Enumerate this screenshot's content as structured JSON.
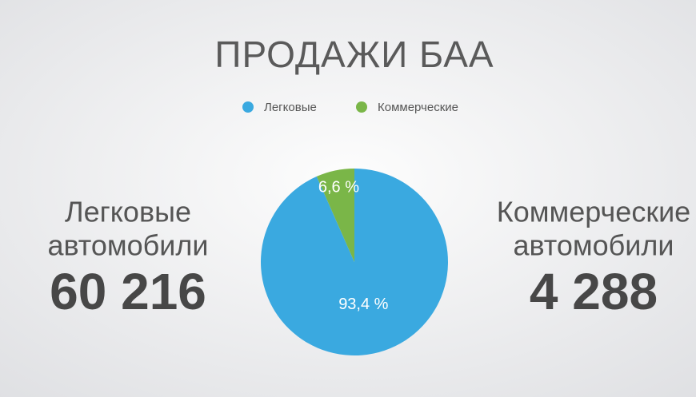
{
  "chart_data": {
    "type": "pie",
    "title": "ПРОДАЖИ БАА",
    "categories": [
      "Легковые",
      "Коммерческие"
    ],
    "values": [
      93.4,
      6.6
    ],
    "value_labels": [
      "93,4 %",
      "6,6 %"
    ],
    "colors": [
      "#3aa9e0",
      "#7ab648"
    ],
    "legend": "top",
    "annotations": [
      {
        "lines": [
          "Легковые",
          "автомобили"
        ],
        "figure": "60 216"
      },
      {
        "lines": [
          "Коммерческие",
          "автомобили"
        ],
        "figure": "4 288"
      }
    ]
  }
}
